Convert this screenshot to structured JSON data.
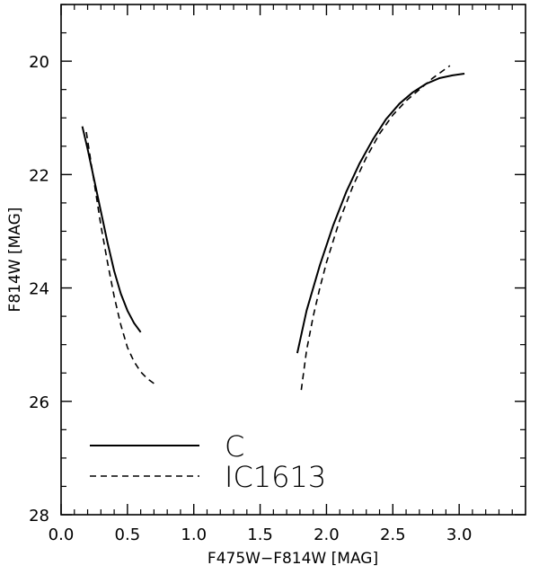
{
  "chart_data": {
    "type": "line",
    "title": "",
    "xlabel": "F475W−F814W [MAG]",
    "ylabel": "F814W [MAG]",
    "xlim": [
      0.0,
      3.5
    ],
    "ylim": [
      28,
      19.0
    ],
    "y_inverted": true,
    "xticks": [
      {
        "value": 0.0,
        "label": "0.0"
      },
      {
        "value": 0.5,
        "label": "0.5"
      },
      {
        "value": 1.0,
        "label": "1.0"
      },
      {
        "value": 1.5,
        "label": "1.5"
      },
      {
        "value": 2.0,
        "label": "2.0"
      },
      {
        "value": 2.5,
        "label": "2.5"
      },
      {
        "value": 3.0,
        "label": "3.0"
      }
    ],
    "yticks": [
      {
        "value": 20,
        "label": "20"
      },
      {
        "value": 22,
        "label": "22"
      },
      {
        "value": 24,
        "label": "24"
      },
      {
        "value": 26,
        "label": "26"
      },
      {
        "value": 28,
        "label": "28"
      }
    ],
    "grid": false,
    "legend_position": "bottom-left",
    "series": [
      {
        "name": "C",
        "style": "solid",
        "segments": [
          {
            "x": [
              0.16,
              0.2,
              0.25,
              0.3,
              0.35,
              0.4,
              0.45,
              0.5,
              0.55,
              0.6
            ],
            "y": [
              21.15,
              21.55,
              22.1,
              22.65,
              23.2,
              23.7,
              24.1,
              24.4,
              24.62,
              24.78
            ]
          },
          {
            "x": [
              1.78,
              1.85,
              1.95,
              2.05,
              2.15,
              2.25,
              2.35,
              2.45,
              2.55,
              2.65,
              2.75,
              2.85,
              2.95,
              3.04
            ],
            "y": [
              25.15,
              24.4,
              23.6,
              22.9,
              22.3,
              21.8,
              21.38,
              21.02,
              20.75,
              20.55,
              20.4,
              20.3,
              20.25,
              20.22
            ]
          }
        ]
      },
      {
        "name": "IC1613",
        "style": "dashed",
        "segments": [
          {
            "x": [
              0.19,
              0.22,
              0.26,
              0.3,
              0.35,
              0.4,
              0.45,
              0.5,
              0.55,
              0.6,
              0.65,
              0.72
            ],
            "y": [
              21.25,
              21.7,
              22.3,
              22.9,
              23.55,
              24.15,
              24.65,
              25.05,
              25.3,
              25.48,
              25.6,
              25.72
            ]
          },
          {
            "x": [
              1.81,
              1.85,
              1.9,
              1.95,
              2.0,
              2.1,
              2.2,
              2.3,
              2.4,
              2.5,
              2.6,
              2.7,
              2.8,
              2.93
            ],
            "y": [
              25.8,
              25.1,
              24.5,
              24.0,
              23.55,
              22.8,
              22.2,
              21.7,
              21.28,
              20.95,
              20.7,
              20.5,
              20.3,
              20.08
            ]
          }
        ]
      }
    ]
  }
}
